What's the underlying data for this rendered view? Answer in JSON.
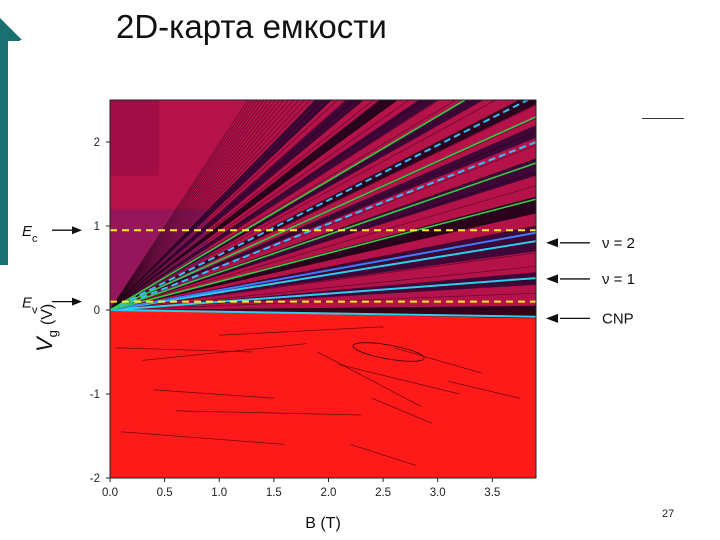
{
  "slide": {
    "title": "2D-карта емкости",
    "page_number": "27"
  },
  "colors": {
    "background_upper": "#b5124a",
    "background_lower": "#ff1a1a",
    "fan_dark": "#2a0535",
    "cyan_line": "#2ad0ee",
    "green_line": "#33cc44",
    "yellow_dash": "#ffee22",
    "blue_dash": "#33c0ff",
    "teal_accent": "#1a7070"
  },
  "chart_data": {
    "type": "heatmap",
    "title": "",
    "xlabel": "B (T)",
    "ylabel_main": "V",
    "ylabel_sub": "g",
    "ylabel_unit": "(V)",
    "xlim": [
      0.0,
      3.9
    ],
    "ylim": [
      -2.0,
      2.5
    ],
    "x_ticks": [
      "0.0",
      "0.5",
      "1.0",
      "1.5",
      "2.0",
      "2.5",
      "3.0",
      "3.5"
    ],
    "y_ticks": [
      "2",
      "1",
      "0",
      "-1",
      "-2"
    ],
    "horizontal_levels": [
      {
        "name": "Ec",
        "vg": 0.95,
        "style": "yellow-dashed"
      },
      {
        "name": "Ev",
        "vg": 0.1,
        "style": "yellow-dashed"
      }
    ],
    "fan_origin": {
      "b": 0.0,
      "vg": 0.0
    },
    "fan_lines": [
      {
        "style": "cyan",
        "vg_at_3_9T": -0.08
      },
      {
        "style": "cyan",
        "vg_at_3_9T": 0.38
      },
      {
        "style": "cyan",
        "vg_at_3_9T": 0.82
      },
      {
        "style": "blue",
        "vg_at_3_9T": 0.92
      },
      {
        "style": "green",
        "vg_at_3_9T": 1.32
      },
      {
        "style": "green",
        "vg_at_3_9T": 1.75
      },
      {
        "style": "blue-dashed",
        "vg_at_3_9T": 2.0
      },
      {
        "style": "green",
        "vg_at_3_9T": 2.3
      },
      {
        "style": "blue-dashed",
        "vg_at_3_9T": 2.55
      },
      {
        "style": "green",
        "vg_at_3_9T": 3.0
      }
    ],
    "left_annotations": [
      {
        "main": "E",
        "sub": "c",
        "vg": 0.95
      },
      {
        "main": "E",
        "sub": "v",
        "vg": 0.1
      }
    ],
    "right_annotations": [
      {
        "text": "ν = 2",
        "vg": 0.8
      },
      {
        "text": "ν = 1",
        "vg": 0.37
      },
      {
        "text": "CNP",
        "vg": -0.1
      }
    ]
  }
}
